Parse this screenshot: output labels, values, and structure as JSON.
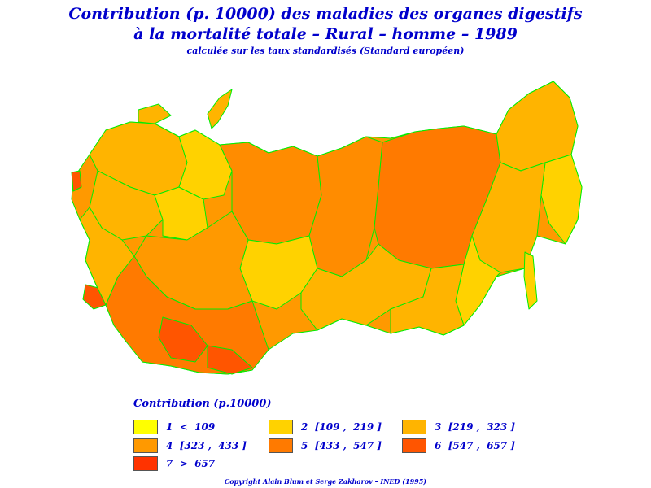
{
  "title": {
    "line1": "Contribution (p. 10000) des maladies des organes digestifs",
    "line2": "à la mortalité totale  –  Rural  –  homme  –  1989",
    "line3": "calculée sur les taux standardisés (Standard européen)"
  },
  "legend": {
    "title": "Contribution  (p.10000)",
    "classes": [
      {
        "label": "1  <  109",
        "color": "#ffff00"
      },
      {
        "label": "2  [109 ,  219 ]",
        "color": "#ffd200"
      },
      {
        "label": "3  [219 ,  323 ]",
        "color": "#ffb400"
      },
      {
        "label": "4  [323 ,  433 ]",
        "color": "#ff9900"
      },
      {
        "label": "5  [433 ,  547 ]",
        "color": "#ff7a00"
      },
      {
        "label": "6  [547 ,  657 ]",
        "color": "#ff5500"
      },
      {
        "label": "7  >  657",
        "color": "#ff3300"
      }
    ]
  },
  "map": {
    "border_color": "#00ee00"
  },
  "copyright": "Copyright  Alain  Blum  et  Serge  Zakharov  –  INED (1995)"
}
